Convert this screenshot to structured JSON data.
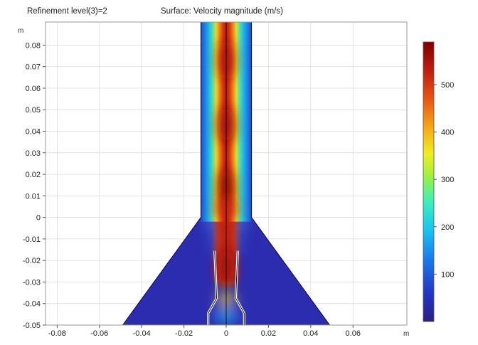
{
  "header": {
    "left": "Refinement level(3)=2",
    "right": "Surface: Velocity magnitude (m/s)"
  },
  "chart_data": {
    "type": "heatmap",
    "title": "Surface: Velocity magnitude (m/s)",
    "subtitle": "Refinement level(3)=2",
    "xlabel": "m",
    "ylabel": "m",
    "xlim": [
      -0.0855,
      0.0855
    ],
    "ylim": [
      -0.05,
      0.0907
    ],
    "x_ticks": [
      -0.08,
      -0.06,
      -0.04,
      -0.02,
      0,
      0.02,
      0.04,
      0.06
    ],
    "x_tick_labels": [
      "-0.08",
      "-0.06",
      "-0.04",
      "-0.02",
      "0",
      "0.02",
      "0.04",
      "0.06"
    ],
    "y_ticks": [
      -0.05,
      -0.04,
      -0.03,
      -0.02,
      -0.01,
      0,
      0.01,
      0.02,
      0.03,
      0.04,
      0.05,
      0.06,
      0.07,
      0.08
    ],
    "y_tick_labels": [
      "-0.05",
      "-0.04",
      "-0.03",
      "-0.02",
      "-0.01",
      "0",
      "0.01",
      "0.02",
      "0.03",
      "0.04",
      "0.05",
      "0.06",
      "0.07",
      "0.08"
    ],
    "colorbar": {
      "range": [
        0,
        590
      ],
      "ticks": [
        100,
        200,
        300,
        400,
        500
      ],
      "tick_labels": [
        "100",
        "200",
        "300",
        "400",
        "500"
      ],
      "colormap": "rainbow (dark blue to dark red)"
    },
    "geometry": {
      "cone_outline": [
        [
          -0.049,
          -0.05
        ],
        [
          -0.012,
          0
        ],
        [
          -0.012,
          0.0907
        ],
        [
          0.012,
          0.0907
        ],
        [
          0.012,
          0
        ],
        [
          0.049,
          -0.05
        ]
      ],
      "nozzle_outline": [
        [
          -0.0085,
          -0.05
        ],
        [
          -0.0085,
          -0.0445
        ],
        [
          -0.0045,
          -0.0375
        ],
        [
          -0.0055,
          -0.0155
        ]
      ],
      "symmetry_axis_x": 0
    },
    "jet_peaks_velocity": [
      {
        "y": 0.073,
        "value": 560
      },
      {
        "y": 0.043,
        "value": 575
      },
      {
        "y": 0.014,
        "value": 590
      },
      {
        "y": -0.023,
        "value": 570
      }
    ],
    "grid": false,
    "grid_lines": true,
    "colors": {
      "background_flow": "#2c2cb0",
      "jet_core": "#b21a10",
      "colorbar_low": "#2a1f84",
      "colorbar_high": "#7d0000"
    }
  }
}
